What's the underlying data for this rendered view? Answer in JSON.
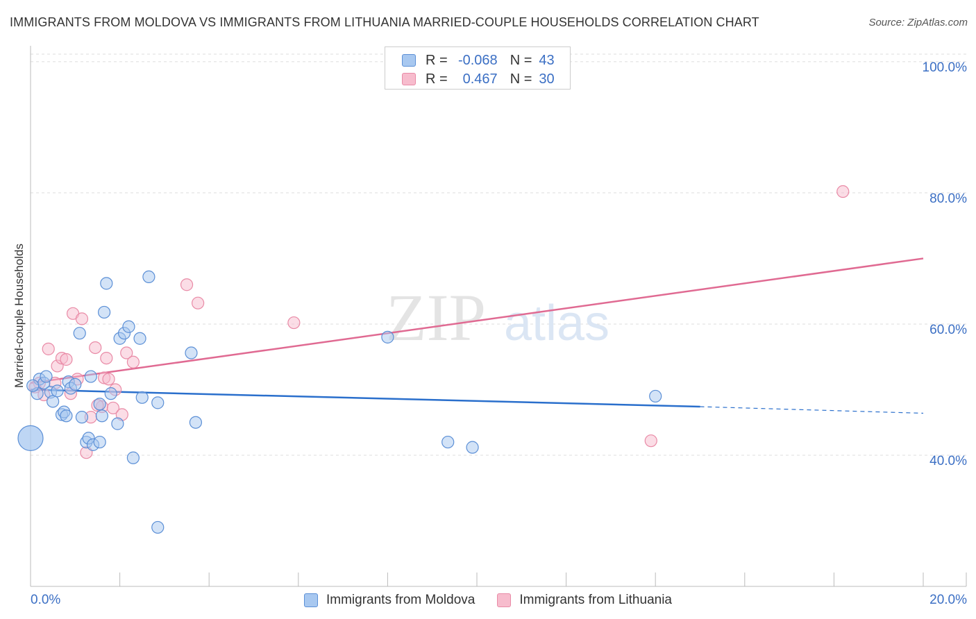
{
  "header": {
    "title": "IMMIGRANTS FROM MOLDOVA VS IMMIGRANTS FROM LITHUANIA MARRIED-COUPLE HOUSEHOLDS CORRELATION CHART",
    "source": "Source: ZipAtlas.com"
  },
  "watermark": {
    "zip": "ZIP",
    "atlas": "atlas"
  },
  "legend": {
    "rows": [
      {
        "r_label": "R =",
        "r_value": "-0.068",
        "n_label": "N =",
        "n_value": "43"
      },
      {
        "r_label": "R =",
        "r_value": "0.467",
        "n_label": "N =",
        "n_value": "30"
      }
    ]
  },
  "bottom_legend": {
    "series1": "Immigrants from Moldova",
    "series2": "Immigrants from Lithuania"
  },
  "colors": {
    "blue_fill": "#a8c8f0",
    "blue_stroke": "#5b8fd6",
    "blue_line": "#2a6fcc",
    "pink_fill": "#f7bccd",
    "pink_stroke": "#e98aa6",
    "pink_line": "#e06a92",
    "axis_text": "#3b6fc4",
    "grid": "#dddddd"
  },
  "chart_data": {
    "type": "scatter",
    "title": "IMMIGRANTS FROM MOLDOVA VS IMMIGRANTS FROM LITHUANIA MARRIED-COUPLE HOUSEHOLDS CORRELATION CHART",
    "xlabel": "",
    "ylabel": "Married-couple Households",
    "xlim": [
      0,
      20
    ],
    "ylim": [
      20,
      102
    ],
    "x_tick_labels": [
      {
        "value": 0,
        "label": "0.0%"
      },
      {
        "value": 20,
        "label": "20.0%"
      }
    ],
    "y_tick_labels": [
      {
        "value": 40,
        "label": "40.0%"
      },
      {
        "value": 60,
        "label": "60.0%"
      },
      {
        "value": 80,
        "label": "80.0%"
      },
      {
        "value": 100,
        "label": "100.0%"
      }
    ],
    "series": [
      {
        "name": "Immigrants from Moldova",
        "color": "blue",
        "points": [
          [
            0.15,
            49.4
          ],
          [
            0.2,
            51.6
          ],
          [
            0.3,
            51.0
          ],
          [
            0.35,
            52.0
          ],
          [
            0.45,
            49.6
          ],
          [
            0.5,
            48.2
          ],
          [
            0.6,
            49.8
          ],
          [
            0.7,
            46.2
          ],
          [
            0.75,
            46.6
          ],
          [
            0.8,
            46.0
          ],
          [
            0.85,
            51.2
          ],
          [
            0.9,
            50.2
          ],
          [
            1.0,
            50.8
          ],
          [
            1.1,
            58.6
          ],
          [
            1.15,
            45.8
          ],
          [
            1.25,
            42.0
          ],
          [
            1.3,
            42.6
          ],
          [
            1.35,
            52.0
          ],
          [
            1.4,
            41.6
          ],
          [
            1.55,
            47.8
          ],
          [
            1.55,
            42.0
          ],
          [
            1.6,
            46.0
          ],
          [
            1.65,
            61.8
          ],
          [
            1.7,
            66.2
          ],
          [
            1.8,
            49.4
          ],
          [
            1.95,
            44.8
          ],
          [
            2.0,
            57.8
          ],
          [
            2.1,
            58.6
          ],
          [
            2.2,
            59.6
          ],
          [
            2.3,
            39.6
          ],
          [
            2.45,
            57.8
          ],
          [
            2.5,
            48.8
          ],
          [
            2.65,
            67.2
          ],
          [
            2.85,
            48.0
          ],
          [
            2.85,
            29.0
          ],
          [
            3.6,
            55.6
          ],
          [
            3.7,
            45.0
          ],
          [
            8.0,
            58.0
          ],
          [
            9.35,
            42.0
          ],
          [
            9.9,
            41.2
          ],
          [
            14.0,
            49.0
          ],
          [
            0.0,
            42.6
          ],
          [
            0.05,
            50.6
          ]
        ],
        "trend": {
          "x": [
            0,
            15
          ],
          "y": [
            50.0,
            47.4
          ],
          "dashed_extension": {
            "x": [
              15,
              20
            ],
            "y": [
              47.4,
              46.4
            ]
          }
        }
      },
      {
        "name": "Immigrants from Lithuania",
        "color": "pink",
        "points": [
          [
            0.2,
            51.0
          ],
          [
            0.3,
            49.2
          ],
          [
            0.4,
            56.2
          ],
          [
            0.55,
            51.0
          ],
          [
            0.6,
            53.6
          ],
          [
            0.7,
            54.8
          ],
          [
            0.8,
            54.6
          ],
          [
            0.9,
            49.4
          ],
          [
            0.95,
            61.6
          ],
          [
            1.05,
            51.6
          ],
          [
            1.15,
            60.8
          ],
          [
            1.25,
            40.4
          ],
          [
            1.35,
            45.8
          ],
          [
            1.45,
            56.4
          ],
          [
            1.6,
            47.4
          ],
          [
            1.65,
            51.8
          ],
          [
            1.7,
            54.8
          ],
          [
            1.75,
            51.6
          ],
          [
            1.85,
            47.2
          ],
          [
            1.9,
            50.0
          ],
          [
            2.05,
            46.2
          ],
          [
            2.15,
            55.6
          ],
          [
            2.3,
            54.2
          ],
          [
            3.5,
            66.0
          ],
          [
            3.75,
            63.2
          ],
          [
            5.9,
            60.2
          ],
          [
            13.9,
            42.2
          ],
          [
            18.2,
            80.2
          ],
          [
            0.1,
            50.4
          ],
          [
            1.5,
            47.6
          ]
        ],
        "trend": {
          "x": [
            0,
            20
          ],
          "y": [
            51.0,
            70.0
          ]
        }
      }
    ]
  }
}
